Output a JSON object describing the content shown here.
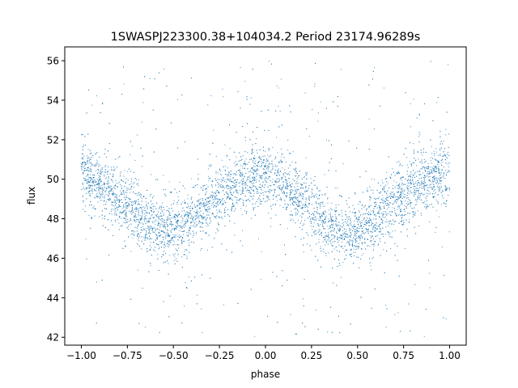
{
  "chart_data": {
    "type": "scatter",
    "title": "1SWASPJ223300.38+104034.2 Period 23174.96289s",
    "xlabel": "phase",
    "ylabel": "flux",
    "xlim": [
      -1.09,
      1.09
    ],
    "ylim": [
      41.6,
      56.7
    ],
    "x_ticks": [
      -1.0,
      -0.75,
      -0.5,
      -0.25,
      0.0,
      0.25,
      0.5,
      0.75,
      1.0
    ],
    "x_tick_labels": [
      "−1.00",
      "−0.75",
      "−0.50",
      "−0.25",
      "0.00",
      "0.25",
      "0.50",
      "0.75",
      "1.00"
    ],
    "y_ticks": [
      42,
      44,
      46,
      48,
      50,
      52,
      54,
      56
    ],
    "y_tick_labels": [
      "42",
      "44",
      "46",
      "48",
      "50",
      "52",
      "54",
      "56"
    ],
    "grid": false,
    "point_color": "#1f77b4",
    "series": [
      {
        "model": "phase-folded light curve, flux ≈ 49.0 + 1.2·cos(2π·phase·1.0)",
        "points": [
          [
            -1.0,
            50.1
          ],
          [
            -0.98,
            50.3
          ],
          [
            -0.95,
            50.0
          ],
          [
            -0.9,
            49.8
          ],
          [
            -0.85,
            49.5
          ],
          [
            -0.8,
            49.1
          ],
          [
            -0.75,
            48.7
          ],
          [
            -0.7,
            48.3
          ],
          [
            -0.65,
            47.9
          ],
          [
            -0.6,
            47.6
          ],
          [
            -0.55,
            47.4
          ],
          [
            -0.5,
            47.4
          ],
          [
            -0.45,
            47.6
          ],
          [
            -0.4,
            48.0
          ],
          [
            -0.35,
            48.4
          ],
          [
            -0.3,
            48.8
          ],
          [
            -0.25,
            49.1
          ],
          [
            -0.2,
            49.5
          ],
          [
            -0.15,
            49.8
          ],
          [
            -0.1,
            50.1
          ],
          [
            -0.05,
            50.2
          ],
          [
            0.0,
            50.2
          ],
          [
            0.05,
            50.0
          ],
          [
            0.1,
            49.7
          ],
          [
            0.15,
            49.3
          ],
          [
            0.2,
            48.9
          ],
          [
            0.25,
            48.5
          ],
          [
            0.3,
            48.1
          ],
          [
            0.35,
            47.8
          ],
          [
            0.4,
            47.5
          ],
          [
            0.45,
            47.3
          ],
          [
            0.5,
            47.3
          ],
          [
            0.55,
            47.6
          ],
          [
            0.6,
            48.0
          ],
          [
            0.65,
            48.5
          ],
          [
            0.7,
            48.9
          ],
          [
            0.75,
            49.2
          ],
          [
            0.8,
            49.5
          ],
          [
            0.85,
            49.8
          ],
          [
            0.9,
            50.0
          ],
          [
            0.95,
            50.1
          ],
          [
            1.0,
            50.2
          ]
        ],
        "scatter_sigma": 0.75,
        "outlier_range": [
          42.0,
          56.0
        ]
      }
    ]
  }
}
